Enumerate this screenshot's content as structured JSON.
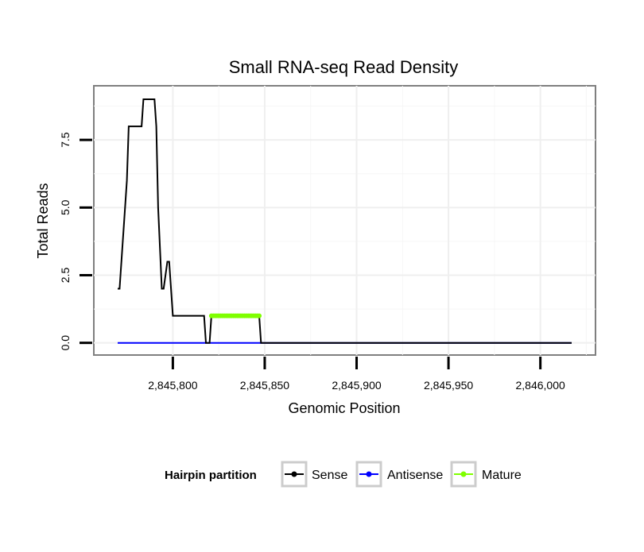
{
  "chart_data": {
    "type": "line",
    "title": "Small RNA-seq Read Density",
    "xlabel": "Genomic Position",
    "ylabel": "Total Reads",
    "xlim": [
      2845757,
      2846030
    ],
    "ylim": [
      -0.45,
      9.5
    ],
    "x_ticks": [
      2845800,
      2845850,
      2845900,
      2845950,
      2846000
    ],
    "x_tick_labels": [
      "2,845,800",
      "2,845,850",
      "2,845,900",
      "2,845,950",
      "2,846,000"
    ],
    "y_ticks": [
      0,
      2.5,
      5,
      7.5
    ],
    "y_tick_labels": [
      "0.0",
      "2.5",
      "5.0",
      "7.5"
    ],
    "grid": true,
    "legend": {
      "title": "Hairpin partition",
      "position": "bottom",
      "entries": [
        {
          "label": "Sense",
          "color": "#000000"
        },
        {
          "label": "Antisense",
          "color": "#0000ff"
        },
        {
          "label": "Mature",
          "color": "#7fff00"
        }
      ]
    },
    "series": [
      {
        "name": "Sense",
        "color": "#000000",
        "x": [
          2845770,
          2845771,
          2845773,
          2845775,
          2845776,
          2845783,
          2845784,
          2845790,
          2845791,
          2845792,
          2845794,
          2845795,
          2845797,
          2845798,
          2845800,
          2845801,
          2845817,
          2845818,
          2845820,
          2845821,
          2845847,
          2845848,
          2846017
        ],
        "y": [
          2,
          2,
          4,
          6,
          8,
          8,
          9,
          9,
          8,
          5,
          2,
          2,
          3,
          3,
          1,
          1,
          1,
          0,
          0,
          1,
          1,
          0,
          0
        ]
      },
      {
        "name": "Antisense",
        "color": "#0000ff",
        "x": [
          2845770,
          2846017
        ],
        "y": [
          0,
          0
        ]
      },
      {
        "name": "Mature",
        "color": "#7fff00",
        "x": [
          2845821,
          2845822,
          2845823,
          2845824,
          2845825,
          2845826,
          2845827,
          2845828,
          2845829,
          2845830,
          2845831,
          2845832,
          2845833,
          2845834,
          2845835,
          2845836,
          2845837,
          2845838,
          2845839,
          2845840,
          2845841,
          2845842,
          2845843,
          2845844,
          2845845,
          2845846,
          2845847
        ],
        "y": [
          1,
          1,
          1,
          1,
          1,
          1,
          1,
          1,
          1,
          1,
          1,
          1,
          1,
          1,
          1,
          1,
          1,
          1,
          1,
          1,
          1,
          1,
          1,
          1,
          1,
          1,
          1
        ]
      }
    ]
  }
}
